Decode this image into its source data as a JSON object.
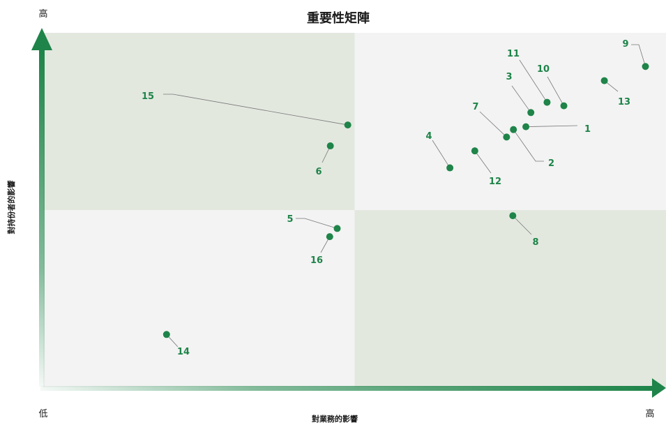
{
  "chart_data": {
    "type": "scatter",
    "title": "重要性矩陣",
    "xlabel": "對業務的影響",
    "ylabel": "對持份者的影響",
    "x_low_label": "低",
    "x_high_label": "高",
    "y_high_label": "高",
    "xlim": [
      0,
      100
    ],
    "ylim": [
      0,
      100
    ],
    "quadrant_split": {
      "x": 50,
      "y": 50
    },
    "grid": false,
    "colors": {
      "point": "#1e8449",
      "label": "#1e8449",
      "axis": "#1e8449",
      "quadrant_green": "#e3e8df",
      "quadrant_gray": "#f3f3f3",
      "leader": "#777777"
    },
    "points": [
      {
        "label": "1",
        "x": 77.5,
        "y": 73.5
      },
      {
        "label": "2",
        "x": 75.5,
        "y": 72.7
      },
      {
        "label": "3",
        "x": 78.3,
        "y": 77.5
      },
      {
        "label": "4",
        "x": 65.3,
        "y": 61.9
      },
      {
        "label": "5",
        "x": 47.2,
        "y": 44.8
      },
      {
        "label": "6",
        "x": 46.1,
        "y": 68.1
      },
      {
        "label": "7",
        "x": 74.4,
        "y": 70.6
      },
      {
        "label": "8",
        "x": 75.4,
        "y": 48.4
      },
      {
        "label": "9",
        "x": 96.7,
        "y": 90.5
      },
      {
        "label": "10",
        "x": 83.6,
        "y": 79.4
      },
      {
        "label": "11",
        "x": 80.9,
        "y": 80.4
      },
      {
        "label": "12",
        "x": 69.3,
        "y": 66.7
      },
      {
        "label": "13",
        "x": 90.1,
        "y": 86.5
      },
      {
        "label": "14",
        "x": 19.8,
        "y": 14.9
      },
      {
        "label": "15",
        "x": 48.9,
        "y": 74.0
      },
      {
        "label": "16",
        "x": 46.0,
        "y": 42.5
      }
    ]
  }
}
